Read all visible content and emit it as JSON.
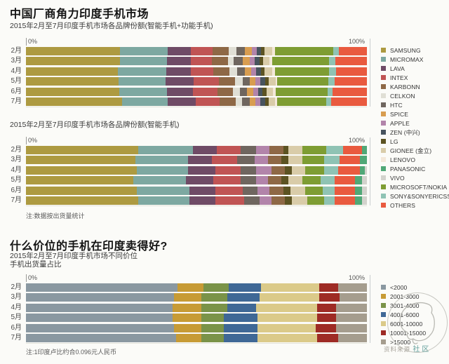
{
  "header": {
    "title": "中国厂商角力印度手机市场"
  },
  "sections": {
    "price": {
      "title": "什么价位的手机在印度卖得好?"
    }
  },
  "months": [
    "2月",
    "3月",
    "4月",
    "5月",
    "6月",
    "7月"
  ],
  "brand_legend": {
    "items": [
      {
        "label": "SAMSUNG",
        "color": "#ad9a41"
      },
      {
        "label": "MICROMAX",
        "color": "#7da8a1"
      },
      {
        "label": "LAVA",
        "color": "#6f4b66"
      },
      {
        "label": "INTEX",
        "color": "#c05454"
      },
      {
        "label": "KARBONN",
        "color": "#8e6846"
      },
      {
        "label": "CELKON",
        "color": "#e0dfd5"
      },
      {
        "label": "HTC",
        "color": "#6f665f"
      },
      {
        "label": "SPICE",
        "color": "#d89d50"
      },
      {
        "label": "APPLE",
        "color": "#b284aa"
      },
      {
        "label": "ZEN (中兴)",
        "color": "#48545f"
      },
      {
        "label": "LG",
        "color": "#5c5322"
      },
      {
        "label": "GIONEE (金立)",
        "color": "#d9cca9"
      },
      {
        "label": "LENOVO",
        "color": "#f4e8da"
      },
      {
        "label": "PANASONIC",
        "color": "#50a877"
      },
      {
        "label": "VIVO",
        "color": "#d3d3cd"
      },
      {
        "label": "MICROSOFT/NOKIA",
        "color": "#7e9d33"
      },
      {
        "label": "SONY&SONYERICSSON",
        "color": "#8fc3b4"
      },
      {
        "label": "OTHERS",
        "color": "#e95a3f"
      }
    ]
  },
  "price_legend": {
    "items": [
      {
        "label": "<2000",
        "color": "#8a98a1"
      },
      {
        "label": "2001-3000",
        "color": "#c79b35"
      },
      {
        "label": "3001-4000",
        "color": "#7a9348"
      },
      {
        "label": "4001-6000",
        "color": "#3f6896"
      },
      {
        "label": "6001-10000",
        "color": "#dbca89"
      },
      {
        "label": "10001-15000",
        "color": "#9e2b25"
      },
      {
        "label": ">15000",
        "color": "#a59d8e"
      }
    ]
  },
  "watermark": {
    "source_label": "资料来源",
    "community_label": "社区",
    "color": "#5f9e9a"
  },
  "chart_data": [
    {
      "type": "bar",
      "variant": "horizontal-stacked-100",
      "title": "2015年2月至7月印度手机市场各品牌份额(智能手机+功能手机)",
      "categories": [
        "2月",
        "3月",
        "4月",
        "5月",
        "6月",
        "7月"
      ],
      "axis_ticks": [
        "0%",
        "100%"
      ],
      "xlim": [
        0,
        100
      ],
      "unit": "percent-share",
      "series": [
        {
          "name": "SAMSUNG",
          "color": "#ad9a41",
          "values": [
            27.5,
            27.5,
            27.0,
            27.2,
            27.4,
            28.2
          ]
        },
        {
          "name": "MICROMAX",
          "color": "#7da8a1",
          "values": [
            14.0,
            13.8,
            14.2,
            13.7,
            13.9,
            13.4
          ]
        },
        {
          "name": "LAVA",
          "color": "#6f4b66",
          "values": [
            6.8,
            7.0,
            7.2,
            8.2,
            7.6,
            8.2
          ]
        },
        {
          "name": "INTEX",
          "color": "#c05454",
          "values": [
            6.5,
            6.3,
            6.5,
            7.5,
            7.2,
            7.0
          ]
        },
        {
          "name": "KARBONN",
          "color": "#8e6846",
          "values": [
            4.7,
            4.6,
            4.8,
            4.8,
            4.7,
            4.7
          ]
        },
        {
          "name": "CELKON",
          "color": "#e0dfd5",
          "values": [
            2.2,
            1.8,
            2.2,
            2.1,
            1.9,
            1.8
          ]
        },
        {
          "name": "HTC",
          "color": "#6f665f",
          "values": [
            2.6,
            2.6,
            2.4,
            2.1,
            2.2,
            2.3
          ]
        },
        {
          "name": "SPICE",
          "color": "#d89d50",
          "values": [
            1.9,
            2.0,
            1.8,
            1.7,
            1.8,
            1.8
          ]
        },
        {
          "name": "APPLE",
          "color": "#b284aa",
          "values": [
            1.5,
            1.5,
            1.5,
            1.4,
            1.4,
            1.4
          ]
        },
        {
          "name": "ZEN (中兴)",
          "color": "#48545f",
          "values": [
            1.3,
            1.4,
            1.4,
            1.4,
            1.3,
            1.3
          ]
        },
        {
          "name": "LG",
          "color": "#5c5322",
          "values": [
            1.0,
            1.0,
            1.0,
            1.2,
            1.1,
            1.1
          ]
        },
        {
          "name": "GIONEE (金立)",
          "color": "#d9cca9",
          "values": [
            2.3,
            2.0,
            2.2,
            1.9,
            2.0,
            1.9
          ]
        },
        {
          "name": "LENOVO",
          "color": "#f4e8da",
          "values": [
            0.8,
            0.8,
            0.8,
            0.5,
            0.7,
            0.6
          ]
        },
        {
          "name": "MICROSOFT/NOKIA",
          "color": "#7e9d33",
          "values": [
            17.0,
            16.6,
            16.0,
            15.1,
            15.2,
            14.3
          ]
        },
        {
          "name": "SONY&SONYERICSSON",
          "color": "#8fc3b4",
          "values": [
            1.6,
            1.8,
            1.9,
            1.7,
            1.6,
            1.6
          ]
        },
        {
          "name": "OTHERS",
          "color": "#e95a3f",
          "values": [
            8.3,
            9.3,
            9.1,
            9.5,
            10.0,
            10.4
          ]
        }
      ]
    },
    {
      "type": "bar",
      "variant": "horizontal-stacked-100",
      "title": "2015年2月至7月印度手机市场各品牌份额(智能手机)",
      "note": "注:数据按出货量统计",
      "categories": [
        "2月",
        "3月",
        "4月",
        "5月",
        "6月",
        "7月"
      ],
      "axis_ticks": [
        "0%",
        "100%"
      ],
      "xlim": [
        0,
        100
      ],
      "unit": "percent-share",
      "series": [
        {
          "name": "SAMSUNG",
          "color": "#ad9a41",
          "values": [
            33.0,
            32.0,
            32.5,
            31.5,
            32.5,
            33.0
          ]
        },
        {
          "name": "MICROMAX",
          "color": "#7da8a1",
          "values": [
            16.0,
            15.5,
            15.0,
            15.5,
            15.5,
            15.0
          ]
        },
        {
          "name": "LAVA",
          "color": "#6f4b66",
          "values": [
            7.0,
            7.0,
            8.0,
            8.0,
            7.5,
            7.5
          ]
        },
        {
          "name": "INTEX",
          "color": "#c05454",
          "values": [
            7.0,
            7.5,
            7.5,
            8.0,
            8.0,
            8.5
          ]
        },
        {
          "name": "HTC",
          "color": "#6f665f",
          "values": [
            4.5,
            5.0,
            4.5,
            4.5,
            4.5,
            4.5
          ]
        },
        {
          "name": "APPLE",
          "color": "#b284aa",
          "values": [
            4.0,
            4.0,
            4.5,
            3.5,
            3.5,
            3.5
          ]
        },
        {
          "name": "KARBONN",
          "color": "#8e6846",
          "values": [
            4.0,
            4.0,
            4.0,
            4.0,
            4.0,
            4.0
          ]
        },
        {
          "name": "LG",
          "color": "#5c5322",
          "values": [
            1.5,
            2.0,
            2.0,
            2.0,
            2.0,
            2.0
          ]
        },
        {
          "name": "GIONEE (金立)",
          "color": "#d9cca9",
          "values": [
            4.0,
            4.0,
            4.0,
            4.0,
            4.5,
            4.5
          ]
        },
        {
          "name": "MICROSOFT/NOKIA",
          "color": "#7e9d33",
          "values": [
            7.0,
            6.5,
            5.5,
            5.5,
            5.0,
            5.0
          ]
        },
        {
          "name": "SONY&SONYERICSSON",
          "color": "#8fc3b4",
          "values": [
            5.0,
            4.5,
            4.0,
            4.0,
            3.5,
            3.0
          ]
        },
        {
          "name": "OTHERS",
          "color": "#e95a3f",
          "values": [
            5.5,
            6.0,
            6.5,
            6.0,
            6.0,
            6.0
          ]
        },
        {
          "name": "PANASONIC",
          "color": "#50a877",
          "values": [
            1.5,
            2.0,
            1.5,
            2.0,
            2.0,
            2.0
          ]
        },
        {
          "name": "VIVO",
          "color": "#d3d3cd",
          "values": [
            0,
            0,
            0.5,
            1.5,
            1.5,
            1.5
          ]
        }
      ]
    },
    {
      "type": "bar",
      "variant": "horizontal-stacked-100",
      "title_line1": "2015年2月至7月印度手机市场不同价位",
      "title_line2": "手机出货量占比",
      "note": "注:1印度卢比约合0.096元人民币",
      "categories": [
        "2月",
        "3月",
        "4月",
        "5月",
        "6月",
        "7月"
      ],
      "axis_ticks": [
        "0%",
        "100%"
      ],
      "xlim": [
        0,
        100
      ],
      "unit": "percent-share-by-price-INR",
      "series": [
        {
          "name": "<2000",
          "color": "#8a98a1",
          "values": [
            44.5,
            43.5,
            43.0,
            43.0,
            43.5,
            44.0
          ]
        },
        {
          "name": "2001-3000",
          "color": "#c79b35",
          "values": [
            7.5,
            8.0,
            8.5,
            8.5,
            8.0,
            7.5
          ]
        },
        {
          "name": "3001-4000",
          "color": "#7a9348",
          "values": [
            7.5,
            7.5,
            7.5,
            6.5,
            6.5,
            6.5
          ]
        },
        {
          "name": "4001-6000",
          "color": "#3f6896",
          "values": [
            9.5,
            9.5,
            8.5,
            10.0,
            10.0,
            10.0
          ]
        },
        {
          "name": "6001-10000",
          "color": "#dbca89",
          "values": [
            17.0,
            17.5,
            18.0,
            17.5,
            17.0,
            17.5
          ]
        },
        {
          "name": "10001-15000",
          "color": "#9e2b25",
          "values": [
            5.5,
            6.0,
            5.5,
            5.5,
            6.0,
            6.0
          ]
        },
        {
          "name": ">15000",
          "color": "#a59d8e",
          "values": [
            8.5,
            8.0,
            9.0,
            9.0,
            9.0,
            8.5
          ]
        }
      ]
    }
  ]
}
